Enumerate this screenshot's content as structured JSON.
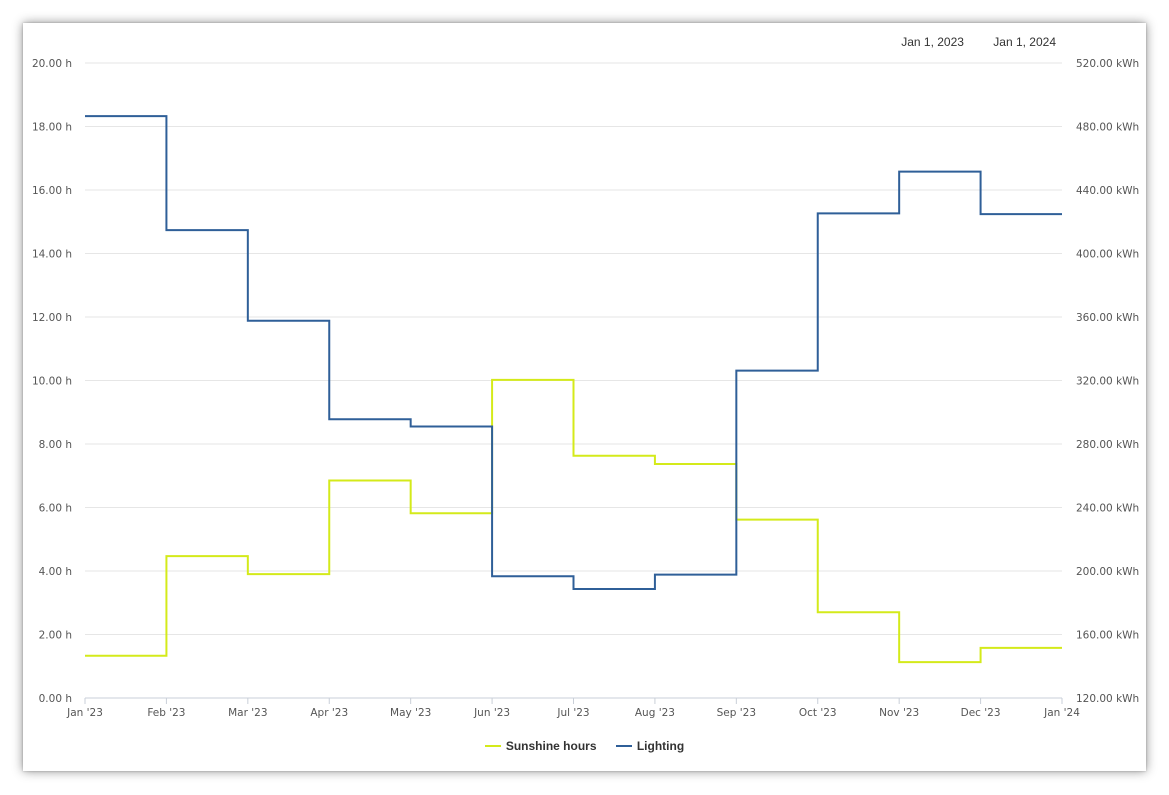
{
  "date_range": {
    "start": "Jan 1, 2023",
    "end": "Jan 1, 2024"
  },
  "chart_data": {
    "type": "line",
    "step": "left",
    "x_ticks": [
      "Jan '23",
      "Feb '23",
      "Mar '23",
      "Apr '23",
      "May '23",
      "Jun '23",
      "Jul '23",
      "Aug '23",
      "Sep '23",
      "Oct '23",
      "Nov '23",
      "Dec '23",
      "Jan '24"
    ],
    "y_left": {
      "range": [
        0,
        20
      ],
      "ticks": [
        "0.00 h",
        "2.00 h",
        "4.00 h",
        "6.00 h",
        "8.00 h",
        "10.00 h",
        "12.00 h",
        "14.00 h",
        "16.00 h",
        "18.00 h",
        "20.00 h"
      ]
    },
    "y_right": {
      "range": [
        120,
        520
      ],
      "ticks": [
        "120.00 kWh",
        "160.00 kWh",
        "200.00 kWh",
        "240.00 kWh",
        "280.00 kWh",
        "320.00 kWh",
        "360.00 kWh",
        "400.00 kWh",
        "440.00 kWh",
        "480.00 kWh",
        "520.00 kWh"
      ]
    },
    "grid": true,
    "legend_position": "bottom",
    "series": [
      {
        "name": "Sunshine hours",
        "axis": "left",
        "color": "#d4ea1a",
        "values": [
          1.33,
          4.47,
          3.9,
          6.85,
          5.82,
          10.02,
          7.63,
          7.37,
          5.62,
          2.7,
          1.13,
          1.58
        ]
      },
      {
        "name": "Lighting",
        "axis": "right",
        "color": "#2f5f98",
        "values": [
          486.5,
          414.7,
          357.6,
          295.6,
          291.0,
          196.7,
          188.7,
          197.7,
          326.2,
          425.3,
          451.6,
          424.8
        ]
      }
    ]
  }
}
